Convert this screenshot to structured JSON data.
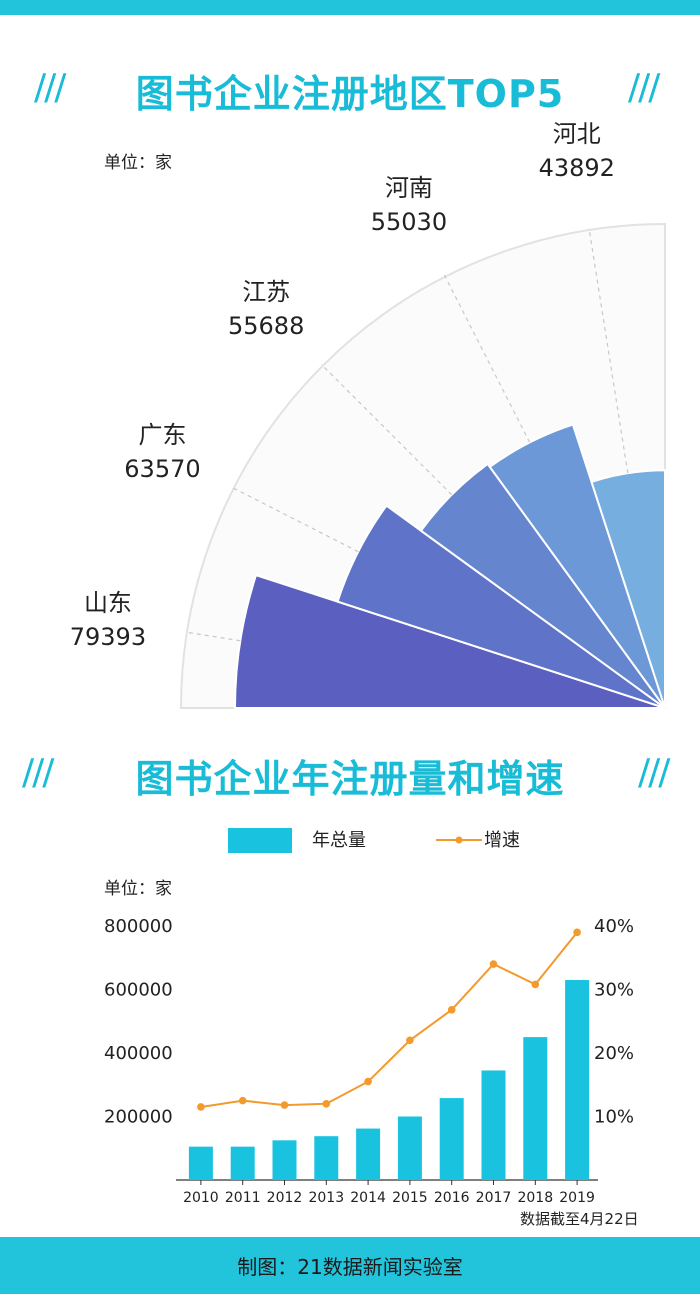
{
  "top_section": {
    "title": "图书企业注册地区TOP5",
    "slash_left": "///",
    "slash_right": "///",
    "unit": "单位：家"
  },
  "bottom_section": {
    "title": "图书企业年注册量和增速",
    "slash_left": "///",
    "slash_right": "///",
    "unit": "单位：家",
    "legend_bar": "年总量",
    "legend_line": "增速",
    "note": "数据截至4月22日"
  },
  "footer": {
    "text": "制图：21数据新闻实验室"
  },
  "colors": {
    "accent": "#22c4dc",
    "title": "#19bcd6",
    "bar": "#19c3e0",
    "line": "#f39a2d",
    "wedges": [
      "#5b5fbf",
      "#5f74c8",
      "#6585cf",
      "#6c98d8",
      "#76aee0"
    ]
  },
  "chart_data": [
    {
      "type": "pie",
      "title": "图书企业注册地区TOP5",
      "unit": "单位：家",
      "categories": [
        "山东",
        "广东",
        "江苏",
        "河南",
        "河北"
      ],
      "values": [
        79393,
        63570,
        55688,
        55030,
        43892
      ]
    },
    {
      "type": "bar",
      "title": "图书企业年注册量和增速",
      "unit": "单位：家",
      "categories": [
        "2010",
        "2011",
        "2012",
        "2013",
        "2014",
        "2015",
        "2016",
        "2017",
        "2018",
        "2019"
      ],
      "ylim": [
        0,
        800000
      ],
      "yticks": [
        "200000",
        "400000",
        "600000",
        "800000"
      ],
      "y2lim": [
        0,
        40
      ],
      "y2ticks": [
        "10%",
        "20%",
        "30%",
        "40%"
      ],
      "series": [
        {
          "name": "年总量",
          "kind": "bar",
          "values": [
            105000,
            105000,
            125000,
            138000,
            162000,
            200000,
            258000,
            345000,
            450000,
            630000
          ]
        },
        {
          "name": "增速",
          "kind": "line",
          "unit": "%",
          "values": [
            11.5,
            12.5,
            11.8,
            12.0,
            15.5,
            22.0,
            26.8,
            34.0,
            30.8,
            39.0
          ]
        }
      ],
      "legend": "top"
    }
  ]
}
